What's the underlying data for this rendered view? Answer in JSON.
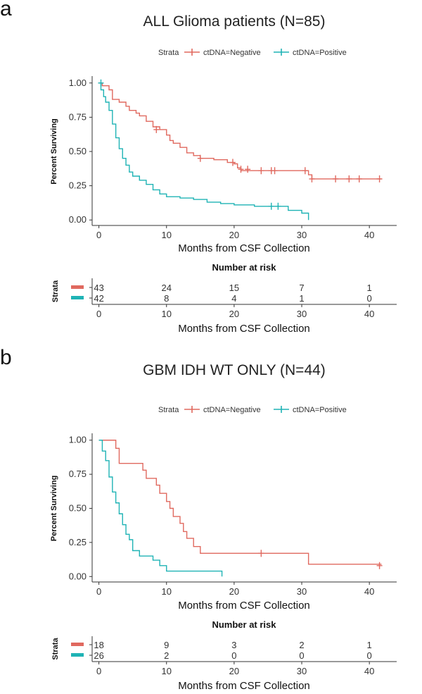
{
  "colors": {
    "negative": "#e0695f",
    "positive": "#1fb3b5"
  },
  "chart_data": [
    {
      "panel_label": "a",
      "type": "line",
      "subtype": "kaplan-meier",
      "title": "ALL Glioma patients (N=85)",
      "legend_title": "Strata",
      "legend_position": "top",
      "xlabel": "Months from CSF Collection",
      "ylabel": "Percent Surviving",
      "xlim": [
        -1,
        43
      ],
      "ylim": [
        -0.04,
        1.04
      ],
      "xticks": [
        0,
        10,
        20,
        30,
        40
      ],
      "yticks": [
        "0.00",
        "0.25",
        "0.50",
        "0.75",
        "1.00"
      ],
      "grid": false,
      "series": [
        {
          "name": "ctDNA=Negative",
          "color_key": "negative",
          "steps": [
            [
              0,
              1.0
            ],
            [
              0.5,
              0.98
            ],
            [
              1.5,
              0.95
            ],
            [
              2,
              0.88
            ],
            [
              3,
              0.86
            ],
            [
              4,
              0.83
            ],
            [
              4.5,
              0.8
            ],
            [
              5.5,
              0.78
            ],
            [
              6,
              0.76
            ],
            [
              7,
              0.72
            ],
            [
              8,
              0.68
            ],
            [
              9,
              0.66
            ],
            [
              10,
              0.62
            ],
            [
              10.5,
              0.58
            ],
            [
              11,
              0.56
            ],
            [
              12,
              0.53
            ],
            [
              13,
              0.49
            ],
            [
              14,
              0.47
            ],
            [
              15,
              0.45
            ],
            [
              16,
              0.45
            ],
            [
              17,
              0.44
            ],
            [
              19,
              0.42
            ],
            [
              20,
              0.41
            ],
            [
              20.5,
              0.38
            ],
            [
              21,
              0.36
            ],
            [
              24,
              0.36
            ],
            [
              27,
              0.36
            ],
            [
              31,
              0.33
            ],
            [
              31.5,
              0.3
            ],
            [
              41.8,
              0.3
            ]
          ],
          "censors": [
            [
              8.5,
              0.66
            ],
            [
              15,
              0.45
            ],
            [
              19.8,
              0.42
            ],
            [
              21,
              0.37
            ],
            [
              22,
              0.37
            ],
            [
              24,
              0.36
            ],
            [
              25.5,
              0.36
            ],
            [
              26,
              0.36
            ],
            [
              30.5,
              0.36
            ],
            [
              31.5,
              0.3
            ],
            [
              35,
              0.3
            ],
            [
              37,
              0.3
            ],
            [
              38.5,
              0.3
            ],
            [
              41.5,
              0.3
            ]
          ]
        },
        {
          "name": "ctDNA=Positive",
          "color_key": "positive",
          "steps": [
            [
              0,
              1.0
            ],
            [
              0.3,
              0.95
            ],
            [
              0.7,
              0.9
            ],
            [
              1,
              0.86
            ],
            [
              1.5,
              0.8
            ],
            [
              2,
              0.7
            ],
            [
              2.5,
              0.6
            ],
            [
              3,
              0.52
            ],
            [
              3.5,
              0.45
            ],
            [
              4,
              0.4
            ],
            [
              4.5,
              0.35
            ],
            [
              5,
              0.32
            ],
            [
              6,
              0.29
            ],
            [
              7,
              0.26
            ],
            [
              8,
              0.22
            ],
            [
              9,
              0.19
            ],
            [
              10,
              0.17
            ],
            [
              12,
              0.16
            ],
            [
              14,
              0.15
            ],
            [
              16,
              0.13
            ],
            [
              18,
              0.12
            ],
            [
              20,
              0.11
            ],
            [
              23,
              0.1
            ],
            [
              26,
              0.1
            ],
            [
              28,
              0.07
            ],
            [
              30,
              0.05
            ],
            [
              31,
              0.02
            ],
            [
              31,
              0.0
            ]
          ],
          "censors": [
            [
              0.3,
              1.0
            ],
            [
              25.5,
              0.1
            ],
            [
              26.5,
              0.1
            ]
          ]
        }
      ],
      "risk_table": {
        "title": "Number at risk",
        "strata_label": "Strata",
        "times": [
          0,
          10,
          20,
          30,
          40
        ],
        "rows": [
          {
            "color_key": "negative",
            "counts": [
              "43",
              "24",
              "15",
              "7",
              "1"
            ]
          },
          {
            "color_key": "positive",
            "counts": [
              "42",
              "8",
              "4",
              "1",
              "0"
            ]
          }
        ],
        "xlabel": "Months from CSF Collection",
        "xticks": [
          0,
          10,
          20,
          30,
          40
        ]
      }
    },
    {
      "panel_label": "b",
      "type": "line",
      "subtype": "kaplan-meier",
      "title": "GBM IDH WT ONLY (N=44)",
      "legend_title": "Strata",
      "legend_position": "top",
      "xlabel": "Months from CSF Collection",
      "ylabel": "Percent Surviving",
      "xlim": [
        -1,
        43
      ],
      "ylim": [
        -0.04,
        1.04
      ],
      "xticks": [
        0,
        10,
        20,
        30,
        40
      ],
      "yticks": [
        "0.00",
        "0.25",
        "0.50",
        "0.75",
        "1.00"
      ],
      "grid": false,
      "series": [
        {
          "name": "ctDNA=Negative",
          "color_key": "negative",
          "steps": [
            [
              0,
              1.0
            ],
            [
              2.5,
              0.94
            ],
            [
              3,
              0.83
            ],
            [
              6,
              0.83
            ],
            [
              6.5,
              0.78
            ],
            [
              7,
              0.72
            ],
            [
              8.5,
              0.67
            ],
            [
              9,
              0.61
            ],
            [
              10,
              0.55
            ],
            [
              10.5,
              0.5
            ],
            [
              11,
              0.44
            ],
            [
              12,
              0.39
            ],
            [
              12.5,
              0.33
            ],
            [
              13,
              0.28
            ],
            [
              14,
              0.22
            ],
            [
              15,
              0.17
            ],
            [
              30.5,
              0.17
            ],
            [
              31,
              0.09
            ],
            [
              41.8,
              0.09
            ]
          ],
          "censors": [
            [
              24,
              0.17
            ],
            [
              41.5,
              0.08
            ]
          ]
        },
        {
          "name": "ctDNA=Positive",
          "color_key": "positive",
          "steps": [
            [
              0,
              1.0
            ],
            [
              0.5,
              0.92
            ],
            [
              1,
              0.85
            ],
            [
              1.5,
              0.73
            ],
            [
              2,
              0.62
            ],
            [
              2.5,
              0.54
            ],
            [
              3,
              0.46
            ],
            [
              3.5,
              0.38
            ],
            [
              4,
              0.31
            ],
            [
              4.5,
              0.27
            ],
            [
              5,
              0.19
            ],
            [
              6,
              0.15
            ],
            [
              8,
              0.12
            ],
            [
              9,
              0.08
            ],
            [
              10,
              0.04
            ],
            [
              18.2,
              0.04
            ],
            [
              18.2,
              0.0
            ]
          ],
          "censors": []
        }
      ],
      "risk_table": {
        "title": "Number at risk",
        "strata_label": "Strata",
        "times": [
          0,
          10,
          20,
          30,
          40
        ],
        "rows": [
          {
            "color_key": "negative",
            "counts": [
              "18",
              "9",
              "3",
              "2",
              "1"
            ]
          },
          {
            "color_key": "positive",
            "counts": [
              "26",
              "2",
              "0",
              "0",
              "0"
            ]
          }
        ],
        "xlabel": "Months from CSF Collection",
        "xticks": [
          0,
          10,
          20,
          30,
          40
        ]
      }
    }
  ]
}
